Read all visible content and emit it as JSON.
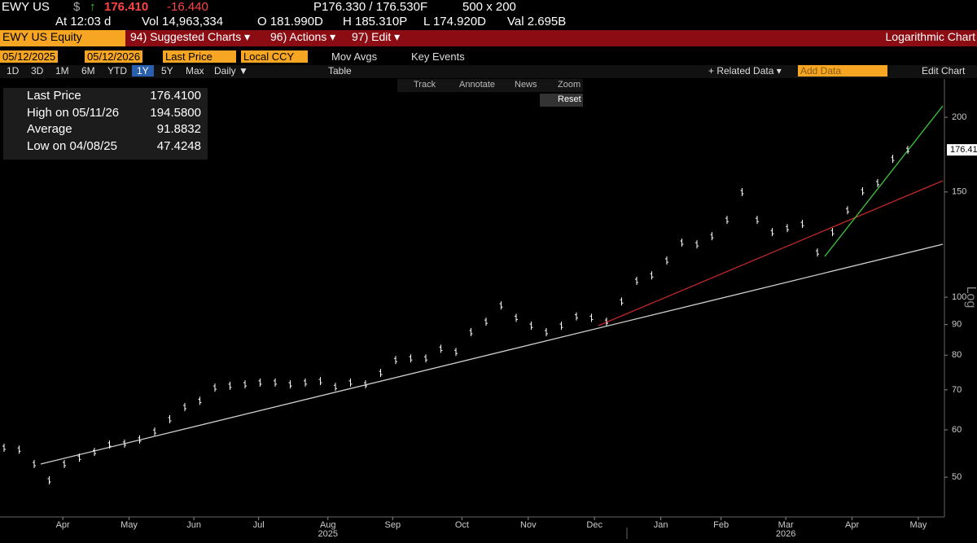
{
  "ticker_bar": {
    "symbol": "EWY US",
    "currency": "$",
    "arrow": "↑",
    "price": "176.410",
    "change": "-16.440",
    "bid_ask": "P176.330 / 176.530F",
    "size": "500 x 200"
  },
  "stats_bar": {
    "time": "At 12:03 d",
    "volume": "Vol 14,963,334",
    "open": "O 181.990D",
    "high": "H 185.310P",
    "low": "L 174.920D",
    "value": "Val 2.695B"
  },
  "menu_bar": {
    "security": "EWY US Equity",
    "items": [
      "94) Suggested Charts ▾",
      "96) Actions ▾",
      "97) Edit ▾"
    ],
    "right": "Logarithmic Chart"
  },
  "settings_bar": {
    "start": "05/12/2025",
    "end": "05/12/2026",
    "field": "Last Price",
    "currency": "Local CCY",
    "mov_avgs": "Mov Avgs",
    "key_events": "Key Events"
  },
  "period_bar": {
    "periods": [
      "1D",
      "3D",
      "1M",
      "6M",
      "YTD",
      "1Y",
      "5Y",
      "Max"
    ],
    "frequency": "Daily ▼",
    "table": "Table",
    "related": "+ Related Data ▾",
    "add_data": "Add Data",
    "edit": "Edit Chart"
  },
  "toolbar": {
    "items": [
      "Track",
      "Annotate",
      "News",
      "Zoom"
    ],
    "reset": "Reset"
  },
  "legend": [
    {
      "label": "Last Price",
      "value": "176.4100"
    },
    {
      "label": "High on 05/11/26",
      "value": "194.5800"
    },
    {
      "label": "Average",
      "value": "91.8832"
    },
    {
      "label": "Low on 04/08/25",
      "value": "47.4248"
    }
  ],
  "chart_data": {
    "type": "price",
    "log_scale": true,
    "color": "#ffffff",
    "y_axis_label": "Log",
    "last_label": "176.41",
    "last_value": 176.41,
    "categories": [
      null,
      null,
      null,
      null,
      null,
      null,
      null,
      null,
      null,
      null,
      null,
      null,
      null,
      null,
      null,
      null,
      null,
      null,
      null,
      null,
      null,
      null,
      null,
      null,
      null,
      null,
      null,
      null,
      null,
      null,
      null,
      null,
      null,
      null,
      null,
      null,
      null,
      null,
      null,
      null,
      null,
      null,
      null,
      null,
      null,
      null,
      null,
      null,
      null,
      null,
      null,
      null,
      null,
      null,
      null,
      null,
      null,
      null,
      null,
      null,
      null
    ],
    "values": [
      56.0,
      55.6,
      52.6,
      49.4,
      52.6,
      53.9,
      55.1,
      56.7,
      56.9,
      57.8,
      59.6,
      62.5,
      65.5,
      67.1,
      70.6,
      71.1,
      71.5,
      72.0,
      72.0,
      71.5,
      72.0,
      72.4,
      70.8,
      72.0,
      71.5,
      74.7,
      78.5,
      79.0,
      79.0,
      82.0,
      81.0,
      87.4,
      91.0,
      96.9,
      92.4,
      89.6,
      87.4,
      89.6,
      92.9,
      92.4,
      91.0,
      98.4,
      106.5,
      108.8,
      115.2,
      123.4,
      122.6,
      126.5,
      134.7,
      149.9,
      134.7,
      128.5,
      130.5,
      132.6,
      118.8,
      128.5,
      139.8,
      150.4,
      155.2,
      170.4,
      176.41
    ],
    "ylim": [
      42.9,
      231.8
    ],
    "yticks": [
      50,
      60,
      70,
      80,
      90,
      100,
      150,
      200
    ],
    "xticks": [
      {
        "value": 3.9,
        "label": "Apr"
      },
      {
        "value": 8.3,
        "label": "May"
      },
      {
        "value": 12.6,
        "label": "Jun"
      },
      {
        "value": 16.9,
        "label": "Jul"
      },
      {
        "value": 21.5,
        "label": "Aug"
      },
      {
        "value": 25.8,
        "label": "Sep"
      },
      {
        "value": 30.4,
        "label": "Oct"
      },
      {
        "value": 34.8,
        "label": "Nov"
      },
      {
        "value": 39.2,
        "label": "Dec"
      },
      {
        "value": 43.6,
        "label": "Jan"
      },
      {
        "value": 47.6,
        "label": "Feb"
      },
      {
        "value": 51.9,
        "label": "Mar"
      },
      {
        "value": 56.3,
        "label": "Apr"
      },
      {
        "value": 60.7,
        "label": "May"
      }
    ],
    "years": [
      {
        "value": 21.5,
        "label": "2025"
      },
      {
        "value": 51.9,
        "label": "2026"
      }
    ]
  }
}
